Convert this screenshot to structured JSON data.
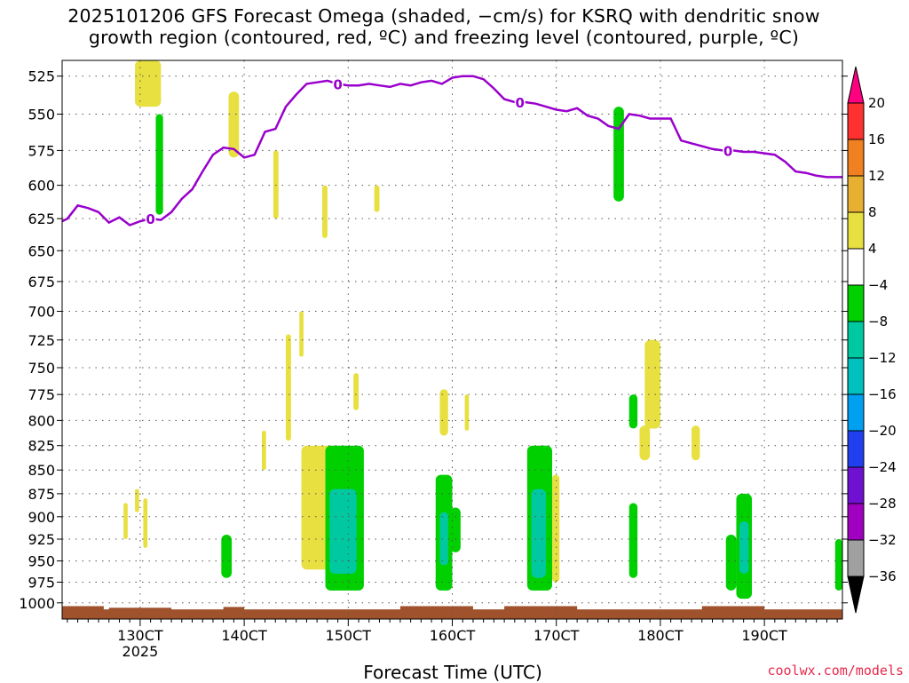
{
  "title_line1": "2025101206 GFS Forecast Omega (shaded, −cm/s) for KSRQ with dendritic snow",
  "title_line2": "growth region (contoured, red, ºC) and freezing level (contoured, purple, ºC)",
  "credit": "coolwx.com/models",
  "chart_data": {
    "type": "heatmap",
    "xlabel": "Forecast Time (UTC)",
    "ylabel": "",
    "x_range_hours": [
      122.5,
      197.5
    ],
    "x_ticks": [
      {
        "hour": 130,
        "label": "130CT",
        "sub": "2025"
      },
      {
        "hour": 140,
        "label": "140CT",
        "sub": ""
      },
      {
        "hour": 150,
        "label": "150CT",
        "sub": ""
      },
      {
        "hour": 160,
        "label": "160CT",
        "sub": ""
      },
      {
        "hour": 170,
        "label": "170CT",
        "sub": ""
      },
      {
        "hour": 180,
        "label": "180CT",
        "sub": ""
      },
      {
        "hour": 190,
        "label": "190CT",
        "sub": ""
      }
    ],
    "y_axis": "pressure (hPa), log scale, inverted",
    "y_range": [
      515,
      1020
    ],
    "y_ticks": [
      525,
      550,
      575,
      600,
      625,
      650,
      675,
      700,
      725,
      750,
      775,
      800,
      825,
      850,
      875,
      900,
      925,
      950,
      975,
      1000
    ],
    "grid": true,
    "colorbar": {
      "levels": [
        20,
        16,
        12,
        8,
        4,
        -4,
        -8,
        -12,
        -16,
        -20,
        -24,
        -28,
        -32,
        -36
      ],
      "colors": [
        "#ff0080",
        "#ff3030",
        "#f08020",
        "#e8b030",
        "#e8e040",
        "#ffffff",
        "#00d000",
        "#00c8a0",
        "#00c0c0",
        "#00a0f0",
        "#2040f0",
        "#7010d0",
        "#a000c0",
        "#a0a0a0",
        "#000000"
      ]
    },
    "freezing_level": {
      "color": "#9900cc",
      "label": "0",
      "x": [
        122.5,
        123,
        124,
        125,
        126,
        127,
        128,
        129,
        130,
        131,
        132,
        133,
        134,
        135,
        136,
        137,
        138,
        139,
        140,
        141,
        142,
        143,
        144,
        145,
        146,
        147,
        148,
        149,
        150,
        151,
        152,
        153,
        154,
        155,
        156,
        157,
        158,
        159,
        160,
        161,
        162,
        163,
        164,
        165,
        166,
        167,
        168,
        169,
        170,
        171,
        172,
        173,
        174,
        175,
        176,
        177,
        178,
        179,
        180,
        181,
        182,
        183,
        184,
        185,
        186,
        187,
        188,
        189,
        190,
        191,
        192,
        193,
        194,
        195,
        196,
        197,
        197.5
      ],
      "y": [
        627,
        625,
        615,
        617,
        620,
        628,
        624,
        630,
        627,
        625,
        626,
        620,
        610,
        603,
        590,
        578,
        573,
        574,
        580,
        578,
        562,
        560,
        545,
        537,
        530,
        529,
        528,
        530,
        531,
        531,
        530,
        531,
        532,
        530,
        531,
        529,
        528,
        530,
        526,
        525,
        525,
        527,
        533,
        540,
        542,
        542,
        543,
        545,
        547,
        548,
        546,
        551,
        553,
        558,
        560,
        550,
        551,
        553,
        553,
        553,
        568,
        570,
        572,
        574,
        575,
        575,
        576,
        576,
        577,
        578,
        583,
        590,
        591,
        593,
        594,
        594,
        594
      ],
      "label_hours": [
        131,
        149,
        166.5,
        186.5
      ]
    },
    "dendritic_growth_region": [],
    "omega_shading": [
      {
        "h0": 129.5,
        "h1": 132,
        "p0": 515,
        "p1": 545,
        "class": "4"
      },
      {
        "h0": 131.5,
        "h1": 132.2,
        "p0": 550,
        "p1": 622,
        "class": "-4"
      },
      {
        "h0": 138.5,
        "h1": 139.5,
        "p0": 535,
        "p1": 580,
        "class": "4"
      },
      {
        "h0": 142.8,
        "h1": 143.3,
        "p0": 575,
        "p1": 625,
        "class": "4"
      },
      {
        "h0": 147.5,
        "h1": 148,
        "p0": 600,
        "p1": 640,
        "class": "4"
      },
      {
        "h0": 152.5,
        "h1": 153,
        "p0": 600,
        "p1": 620,
        "class": "4"
      },
      {
        "h0": 175.5,
        "h1": 176.5,
        "p0": 545,
        "p1": 612,
        "class": "-4"
      },
      {
        "h0": 144,
        "h1": 144.5,
        "p0": 720,
        "p1": 820,
        "class": "4"
      },
      {
        "h0": 145.3,
        "h1": 145.7,
        "p0": 700,
        "p1": 740,
        "class": "4"
      },
      {
        "h0": 141.7,
        "h1": 142.1,
        "p0": 810,
        "p1": 850,
        "class": "4"
      },
      {
        "h0": 150.5,
        "h1": 151,
        "p0": 755,
        "p1": 790,
        "class": "4"
      },
      {
        "h0": 158.8,
        "h1": 159.6,
        "p0": 770,
        "p1": 815,
        "class": "4"
      },
      {
        "h0": 161.2,
        "h1": 161.6,
        "p0": 775,
        "p1": 810,
        "class": "4"
      },
      {
        "h0": 177,
        "h1": 177.8,
        "p0": 775,
        "p1": 808,
        "class": "-4"
      },
      {
        "h0": 178.5,
        "h1": 180,
        "p0": 725,
        "p1": 808,
        "class": "4"
      },
      {
        "h0": 178,
        "h1": 179,
        "p0": 805,
        "p1": 840,
        "class": "4"
      },
      {
        "h0": 183,
        "h1": 183.8,
        "p0": 805,
        "p1": 840,
        "class": "4"
      },
      {
        "h0": 128.4,
        "h1": 128.8,
        "p0": 885,
        "p1": 925,
        "class": "4"
      },
      {
        "h0": 129.5,
        "h1": 129.9,
        "p0": 870,
        "p1": 895,
        "class": "4"
      },
      {
        "h0": 130.3,
        "h1": 130.7,
        "p0": 880,
        "p1": 935,
        "class": "4"
      },
      {
        "h0": 137.8,
        "h1": 138.8,
        "p0": 920,
        "p1": 970,
        "class": "-4"
      },
      {
        "h0": 145.5,
        "h1": 148.5,
        "p0": 825,
        "p1": 960,
        "class": "4"
      },
      {
        "h0": 147.8,
        "h1": 151.5,
        "p0": 825,
        "p1": 985,
        "class": "-4"
      },
      {
        "h0": 148.2,
        "h1": 150.8,
        "p0": 870,
        "p1": 965,
        "class": "-8"
      },
      {
        "h0": 158.4,
        "h1": 160,
        "p0": 855,
        "p1": 985,
        "class": "-4"
      },
      {
        "h0": 158.8,
        "h1": 159.6,
        "p0": 895,
        "p1": 955,
        "class": "-8"
      },
      {
        "h0": 159.8,
        "h1": 160.8,
        "p0": 890,
        "p1": 940,
        "class": "-4"
      },
      {
        "h0": 167.2,
        "h1": 169.6,
        "p0": 825,
        "p1": 985,
        "class": "-4"
      },
      {
        "h0": 167.6,
        "h1": 169,
        "p0": 870,
        "p1": 970,
        "class": "-8"
      },
      {
        "h0": 169.2,
        "h1": 169.6,
        "p0": 840,
        "p1": 980,
        "class": "-4"
      },
      {
        "h0": 169.6,
        "h1": 170.3,
        "p0": 855,
        "p1": 975,
        "class": "4"
      },
      {
        "h0": 177,
        "h1": 177.8,
        "p0": 885,
        "p1": 970,
        "class": "-4"
      },
      {
        "h0": 186.3,
        "h1": 187.3,
        "p0": 920,
        "p1": 985,
        "class": "-4"
      },
      {
        "h0": 187.3,
        "h1": 188.8,
        "p0": 875,
        "p1": 995,
        "class": "-4"
      },
      {
        "h0": 187.6,
        "h1": 188.5,
        "p0": 905,
        "p1": 965,
        "class": "-8"
      },
      {
        "h0": 196.8,
        "h1": 197.5,
        "p0": 925,
        "p1": 985,
        "class": "-4"
      }
    ],
    "terrain_color": "#a0522d"
  }
}
